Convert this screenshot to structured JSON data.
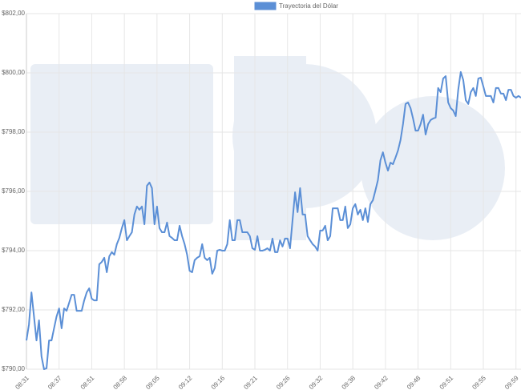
{
  "chart_data": {
    "type": "line",
    "categories": [
      "08:31",
      null,
      null,
      null,
      null,
      null,
      null,
      null,
      null,
      null,
      null,
      null,
      null,
      "08:37",
      null,
      null,
      null,
      null,
      null,
      null,
      null,
      null,
      null,
      null,
      null,
      null,
      "08:51",
      null,
      null,
      null,
      null,
      null,
      null,
      null,
      null,
      null,
      null,
      null,
      null,
      "08:58",
      null,
      null,
      null,
      null,
      null,
      null,
      null,
      null,
      null,
      null,
      null,
      null,
      "09:05",
      null,
      null,
      null,
      null,
      null,
      null,
      null,
      null,
      null,
      null,
      null,
      null,
      "09:12",
      null,
      null,
      null,
      null,
      null,
      null,
      null,
      null,
      null,
      null,
      null,
      null,
      "09:16",
      null,
      null,
      null,
      null,
      null,
      null,
      null,
      null,
      null,
      null,
      null,
      null,
      "09:21",
      null,
      null,
      null,
      null,
      null,
      null,
      null,
      null,
      null,
      null,
      null,
      null,
      "09:26",
      null,
      null,
      null,
      null,
      null,
      null,
      null,
      null,
      null,
      null,
      null,
      null,
      "09:32",
      null,
      null,
      null,
      null,
      null,
      null,
      null,
      null,
      null,
      null,
      null,
      null,
      "09:38",
      null,
      null,
      null,
      null,
      null,
      null,
      null,
      null,
      null,
      null,
      null,
      null,
      "09:42",
      null,
      null,
      null,
      null,
      null,
      null,
      null,
      null,
      null,
      null,
      null,
      null,
      "09:48",
      null,
      null,
      null,
      null,
      null,
      null,
      null,
      null,
      null,
      null,
      null,
      null,
      "09:51",
      null,
      null,
      null,
      null,
      null,
      null,
      null,
      null,
      null,
      null,
      null,
      null,
      "09:55",
      null,
      null,
      null,
      null,
      null,
      null,
      null,
      null,
      null,
      null,
      null,
      null,
      "09:59",
      null,
      null
    ],
    "series": [
      {
        "name": "Trayectoria del Dólar",
        "color": "#5b8fd6",
        "values": [
          790.97,
          791.51,
          792.59,
          791.78,
          790.97,
          791.65,
          790.43,
          790.0,
          790.03,
          790.97,
          790.97,
          791.38,
          791.78,
          792.05,
          791.38,
          792.05,
          791.97,
          792.24,
          792.51,
          792.51,
          791.97,
          791.97,
          791.97,
          792.32,
          792.59,
          792.73,
          792.38,
          792.32,
          792.32,
          793.54,
          793.62,
          793.76,
          793.27,
          793.81,
          793.95,
          793.86,
          794.22,
          794.43,
          794.76,
          795.03,
          794.35,
          794.49,
          794.62,
          795.22,
          795.49,
          795.38,
          795.49,
          794.89,
          796.19,
          796.3,
          796.11,
          794.89,
          795.49,
          794.76,
          794.62,
          794.62,
          794.95,
          794.49,
          794.43,
          794.35,
          794.35,
          794.84,
          794.49,
          794.22,
          793.86,
          793.32,
          793.27,
          793.68,
          793.76,
          793.81,
          794.22,
          793.76,
          793.68,
          793.76,
          793.22,
          793.41,
          794.0,
          794.03,
          794.0,
          794.0,
          794.22,
          795.03,
          794.35,
          794.35,
          795.03,
          795.03,
          794.62,
          794.62,
          794.62,
          794.49,
          794.08,
          794.03,
          794.49,
          794.0,
          794.0,
          794.03,
          794.08,
          794.0,
          794.41,
          793.95,
          793.95,
          794.35,
          794.14,
          794.41,
          794.41,
          794.08,
          795.03,
          795.97,
          795.3,
          796.11,
          795.22,
          795.22,
          794.49,
          794.35,
          794.22,
          794.14,
          794.0,
          794.68,
          794.68,
          794.84,
          794.35,
          794.49,
          795.43,
          795.43,
          795.43,
          795.03,
          795.03,
          795.49,
          794.76,
          794.89,
          795.43,
          795.57,
          795.22,
          795.38,
          795.03,
          795.43,
          794.97,
          795.57,
          795.7,
          796.03,
          796.38,
          797.05,
          797.32,
          796.97,
          796.7,
          796.97,
          796.92,
          797.14,
          797.38,
          797.73,
          798.27,
          798.95,
          799.0,
          798.81,
          798.46,
          798.05,
          798.05,
          798.27,
          798.59,
          797.92,
          798.27,
          798.41,
          798.46,
          798.49,
          799.49,
          799.35,
          799.81,
          799.89,
          799.0,
          798.81,
          798.73,
          798.54,
          799.43,
          800.03,
          799.76,
          799.08,
          798.95,
          799.35,
          799.49,
          799.22,
          799.81,
          799.84,
          799.54,
          799.22,
          799.22,
          799.22,
          799.0,
          799.49,
          799.49,
          799.3,
          799.3,
          799.08,
          799.43,
          799.43,
          799.22,
          799.16,
          799.22,
          799.16
        ]
      }
    ],
    "ylim": [
      790,
      802
    ],
    "yticks": [
      {
        "value": 790,
        "label": "$790,00"
      },
      {
        "value": 792,
        "label": "$792,00"
      },
      {
        "value": 794,
        "label": "$794,00"
      },
      {
        "value": 796,
        "label": "$796,00"
      },
      {
        "value": 798,
        "label": "$798,00"
      },
      {
        "value": 800,
        "label": "$800,00"
      },
      {
        "value": 802,
        "label": "$802,00"
      }
    ],
    "grid": true,
    "legend": "top"
  }
}
